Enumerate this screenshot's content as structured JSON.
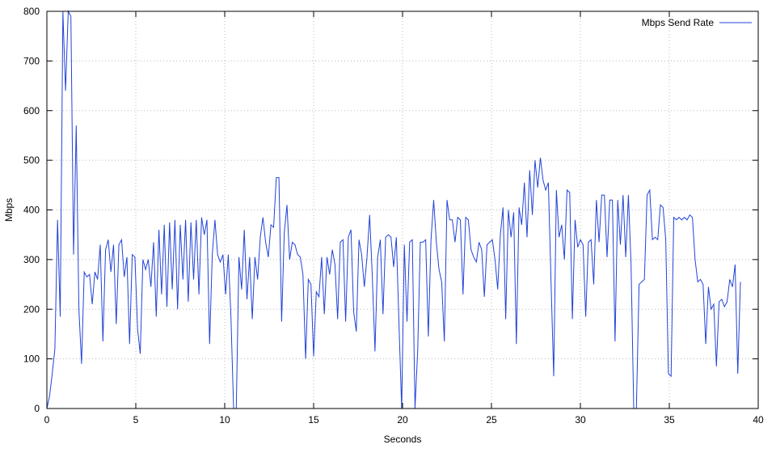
{
  "chart_data": {
    "type": "line",
    "title": "",
    "xlabel": "Seconds",
    "ylabel": "Mbps",
    "xlim": [
      0,
      40
    ],
    "ylim": [
      0,
      800
    ],
    "xticks": [
      0,
      5,
      10,
      15,
      20,
      25,
      30,
      35,
      40
    ],
    "yticks": [
      0,
      100,
      200,
      300,
      400,
      500,
      600,
      700,
      800
    ],
    "grid": true,
    "legend_position": "top-right",
    "colors": {
      "grid": "#bbbbbb",
      "axis": "#000000",
      "background": "#ffffff"
    },
    "series": [
      {
        "name": "Mbps Send Rate",
        "color": "#2243d8",
        "x_start": 0,
        "x_step": 0.15,
        "values": [
          0,
          25,
          70,
          120,
          380,
          185,
          800,
          640,
          800,
          790,
          310,
          570,
          200,
          90,
          275,
          265,
          270,
          210,
          275,
          260,
          330,
          135,
          320,
          340,
          275,
          330,
          170,
          330,
          340,
          265,
          305,
          130,
          310,
          305,
          160,
          110,
          300,
          280,
          300,
          245,
          335,
          185,
          360,
          230,
          370,
          205,
          375,
          240,
          380,
          200,
          370,
          260,
          380,
          215,
          375,
          260,
          380,
          230,
          385,
          350,
          380,
          130,
          310,
          380,
          310,
          295,
          310,
          230,
          310,
          185,
          0,
          0,
          305,
          240,
          360,
          220,
          305,
          180,
          305,
          260,
          345,
          385,
          335,
          305,
          370,
          365,
          465,
          465,
          175,
          355,
          410,
          300,
          335,
          330,
          310,
          305,
          270,
          100,
          260,
          250,
          105,
          235,
          225,
          305,
          190,
          305,
          270,
          320,
          290,
          180,
          335,
          340,
          175,
          345,
          360,
          195,
          155,
          340,
          310,
          245,
          305,
          390,
          265,
          115,
          305,
          340,
          190,
          345,
          350,
          345,
          285,
          345,
          170,
          0,
          330,
          175,
          335,
          340,
          0,
          115,
          335,
          335,
          340,
          145,
          340,
          420,
          335,
          280,
          255,
          135,
          420,
          380,
          380,
          335,
          385,
          380,
          230,
          385,
          380,
          320,
          305,
          295,
          335,
          320,
          225,
          330,
          335,
          340,
          300,
          240,
          350,
          405,
          180,
          400,
          345,
          395,
          130,
          405,
          370,
          455,
          345,
          480,
          390,
          500,
          445,
          505,
          460,
          440,
          455,
          255,
          65,
          440,
          345,
          370,
          300,
          440,
          435,
          180,
          380,
          325,
          340,
          330,
          185,
          335,
          340,
          250,
          420,
          335,
          430,
          430,
          305,
          420,
          420,
          135,
          420,
          330,
          430,
          305,
          430,
          290,
          0,
          0,
          250,
          255,
          260,
          430,
          440,
          340,
          345,
          340,
          410,
          405,
          340,
          70,
          65,
          385,
          380,
          385,
          380,
          385,
          380,
          390,
          385,
          300,
          255,
          260,
          250,
          130,
          245,
          200,
          210,
          85,
          215,
          220,
          205,
          215,
          260,
          245,
          290,
          70,
          255
        ]
      }
    ]
  }
}
